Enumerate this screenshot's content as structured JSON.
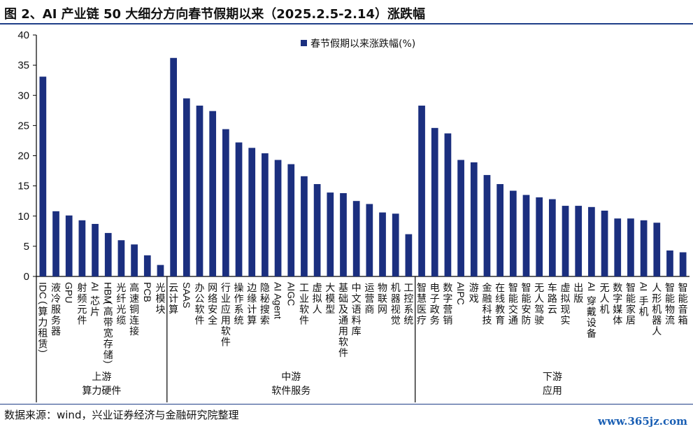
{
  "title": "图 2、AI 产业链 50 大细分方向春节假期以来（2025.2.5-2.14）涨跌幅",
  "source": "数据来源：wind，兴业证券经济与金融研究院整理",
  "watermark": "www.365jz.com",
  "colors": {
    "bar": "#1b2f7f",
    "axis": "#000000",
    "title_rule": "#1f3f88"
  },
  "chart_data": {
    "type": "bar",
    "title": "",
    "xlabel": "",
    "ylabel": "",
    "ylim": [
      0,
      40
    ],
    "yticks": [
      0,
      5,
      10,
      15,
      20,
      25,
      30,
      35,
      40
    ],
    "grid": false,
    "legend_position": "top-center",
    "series": [
      {
        "name": "春节假期以来涨跌幅(%)"
      }
    ],
    "groups": [
      {
        "name": [
          "上游",
          "算力硬件"
        ],
        "start": 0,
        "end": 10
      },
      {
        "name": [
          "中游",
          "软件服务"
        ],
        "start": 10,
        "end": 29
      },
      {
        "name": [
          "下游",
          "应用"
        ],
        "start": 29,
        "end": 50
      }
    ],
    "categories": [
      "IDC(算力租赁)",
      "液冷服务器",
      "GPU",
      "射频元件",
      "AI芯片",
      "HBM(高带宽存储)",
      "光纤光缆",
      "高速铜连接",
      "PCB",
      "光模块",
      "云计算",
      "SAAS",
      "办公软件",
      "网络安全",
      "行业应用软件",
      "操作系统",
      "边缘计算",
      "隐秘搜索",
      "AI Agent",
      "AIGC",
      "工业软件",
      "虚拟人",
      "大模型",
      "基础及通用软件",
      "中文语料库",
      "运营商",
      "物联网",
      "机器视觉",
      "工控系统",
      "智慧医疗",
      "电子政务",
      "数字营销",
      "AIPC",
      "游戏",
      "金融科技",
      "在线教育",
      "智能交通",
      "智能安防",
      "无人驾驶",
      "车路云",
      "虚拟现实",
      "出版",
      "AI穿戴设备",
      "无人机",
      "数字媒体",
      "智能家居",
      "AI手机",
      "人形机器人",
      "智能物流",
      "智能音箱"
    ],
    "values": [
      33.1,
      10.8,
      10.1,
      9.3,
      8.7,
      7.2,
      6.0,
      5.3,
      3.5,
      1.9,
      36.2,
      29.5,
      28.3,
      27.4,
      24.4,
      22.2,
      21.3,
      20.4,
      19.3,
      18.6,
      16.6,
      15.3,
      13.9,
      13.8,
      12.5,
      12.0,
      10.6,
      10.4,
      7.0,
      28.3,
      24.6,
      23.7,
      19.3,
      18.9,
      16.8,
      15.3,
      14.2,
      13.5,
      13.1,
      12.8,
      11.7,
      11.7,
      11.5,
      10.9,
      9.6,
      9.6,
      9.3,
      8.9,
      4.3,
      4.0
    ]
  }
}
